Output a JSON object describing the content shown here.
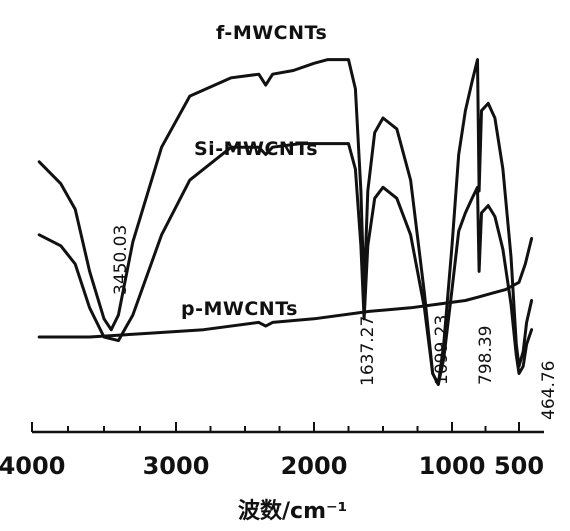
{
  "chart_data": {
    "type": "line",
    "title": "",
    "xlabel": "波数/cm⁻¹",
    "ylabel": "",
    "xlim": [
      4000,
      400
    ],
    "x_reversed": true,
    "grid": false,
    "ticks": [
      {
        "value": 4000,
        "label": "4000"
      },
      {
        "value": 3000,
        "label": "3000"
      },
      {
        "value": 2000,
        "label": "2000"
      },
      {
        "value": 1000,
        "label": "1000"
      },
      {
        "value": 500,
        "label": "500"
      }
    ],
    "series": [
      {
        "name": "f-MWCNTs",
        "x": [
          3950,
          3800,
          3700,
          3600,
          3500,
          3450,
          3400,
          3300,
          3100,
          2900,
          2600,
          2400,
          2350,
          2300,
          2150,
          2000,
          1900,
          1750,
          1700,
          1660,
          1637,
          1610,
          1560,
          1500,
          1400,
          1300,
          1200,
          1140,
          1099,
          1060,
          1000,
          950,
          900,
          850,
          810,
          798,
          780,
          730,
          680,
          620,
          560,
          520,
          500,
          480,
          464,
          440
        ],
        "y": [
          0.68,
          0.62,
          0.55,
          0.38,
          0.25,
          0.22,
          0.26,
          0.46,
          0.72,
          0.86,
          0.91,
          0.92,
          0.89,
          0.92,
          0.93,
          0.95,
          0.96,
          0.96,
          0.88,
          0.6,
          0.32,
          0.6,
          0.76,
          0.8,
          0.77,
          0.63,
          0.32,
          0.1,
          0.07,
          0.18,
          0.45,
          0.7,
          0.82,
          0.9,
          0.96,
          0.6,
          0.82,
          0.84,
          0.8,
          0.66,
          0.42,
          0.18,
          0.12,
          0.16,
          0.24,
          0.3
        ]
      },
      {
        "name": "Si-MWCNTs",
        "x": [
          3950,
          3800,
          3700,
          3600,
          3500,
          3400,
          3300,
          3100,
          2900,
          2600,
          2400,
          2350,
          2300,
          2100,
          1900,
          1750,
          1700,
          1660,
          1637,
          1610,
          1560,
          1500,
          1400,
          1300,
          1200,
          1140,
          1099,
          1060,
          1000,
          950,
          900,
          850,
          810,
          798,
          780,
          730,
          680,
          620,
          560,
          520,
          500,
          480,
          464,
          440
        ],
        "y": [
          0.48,
          0.45,
          0.4,
          0.28,
          0.2,
          0.19,
          0.26,
          0.48,
          0.63,
          0.72,
          0.72,
          0.7,
          0.72,
          0.73,
          0.73,
          0.73,
          0.66,
          0.45,
          0.25,
          0.45,
          0.58,
          0.61,
          0.58,
          0.48,
          0.28,
          0.1,
          0.07,
          0.14,
          0.33,
          0.49,
          0.54,
          0.58,
          0.61,
          0.38,
          0.54,
          0.56,
          0.53,
          0.44,
          0.29,
          0.15,
          0.1,
          0.12,
          0.18,
          0.22
        ]
      },
      {
        "name": "p-MWCNTs",
        "x": [
          3950,
          3600,
          3200,
          2800,
          2400,
          2350,
          2300,
          2000,
          1600,
          1300,
          1100,
          900,
          800,
          700,
          600,
          500,
          470,
          440
        ],
        "y": [
          0.2,
          0.2,
          0.21,
          0.22,
          0.24,
          0.23,
          0.24,
          0.25,
          0.27,
          0.28,
          0.29,
          0.3,
          0.31,
          0.32,
          0.33,
          0.35,
          0.4,
          0.47
        ]
      }
    ],
    "annotations": [
      {
        "text": "3450.03",
        "x": 3450
      },
      {
        "text": "1637.27",
        "x": 1637
      },
      {
        "text": "1099.23",
        "x": 1099
      },
      {
        "text": "798.39",
        "x": 798
      },
      {
        "text": "464.76",
        "x": 464
      }
    ]
  }
}
